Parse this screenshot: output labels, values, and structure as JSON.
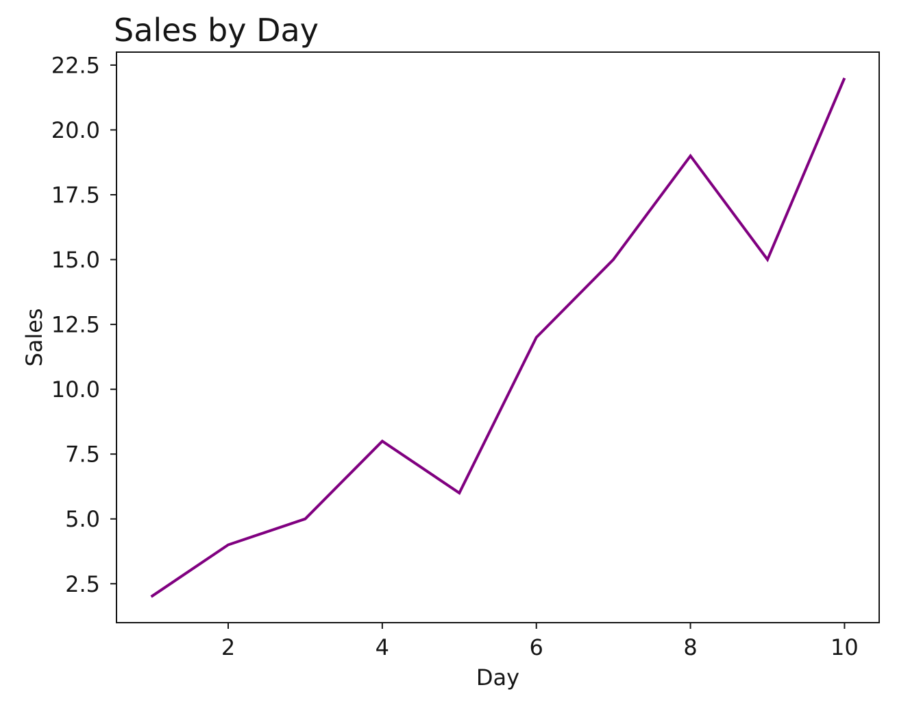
{
  "chart_data": {
    "type": "line",
    "title": "Sales by Day",
    "xlabel": "Day",
    "ylabel": "Sales",
    "x": [
      1,
      2,
      3,
      4,
      5,
      6,
      7,
      8,
      9,
      10
    ],
    "values": [
      2,
      4,
      5,
      8,
      6,
      12,
      15,
      19,
      15,
      22
    ],
    "series_name": "Sales",
    "line_color": "#800080",
    "xlim": [
      0.55,
      10.45
    ],
    "ylim": [
      1,
      23
    ],
    "x_ticks": [
      2,
      4,
      6,
      8,
      10
    ],
    "y_ticks": [
      2.5,
      5.0,
      7.5,
      10.0,
      12.5,
      15.0,
      17.5,
      20.0,
      22.5
    ],
    "grid": false,
    "legend": false
  }
}
